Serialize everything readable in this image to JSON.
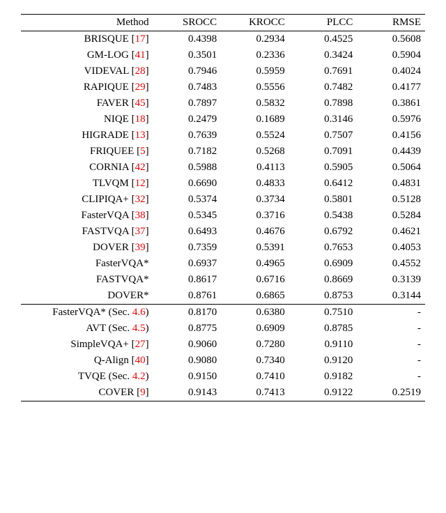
{
  "table": {
    "columns": [
      "Method",
      "SROCC",
      "KROCC",
      "PLCC",
      "RMSE"
    ],
    "rows_top": [
      {
        "method": "BRISQUE",
        "cite": "17",
        "srocc": "0.4398",
        "krocc": "0.2934",
        "plcc": "0.4525",
        "rmse": "0.5608"
      },
      {
        "method": "GM-LOG",
        "cite": "41",
        "srocc": "0.3501",
        "krocc": "0.2336",
        "plcc": "0.3424",
        "rmse": "0.5904"
      },
      {
        "method": "VIDEVAL",
        "cite": "28",
        "srocc": "0.7946",
        "krocc": "0.5959",
        "plcc": "0.7691",
        "rmse": "0.4024"
      },
      {
        "method": "RAPIQUE",
        "cite": "29",
        "srocc": "0.7483",
        "krocc": "0.5556",
        "plcc": "0.7482",
        "rmse": "0.4177"
      },
      {
        "method": "FAVER",
        "cite": "45",
        "srocc": "0.7897",
        "krocc": "0.5832",
        "plcc": "0.7898",
        "rmse": "0.3861"
      },
      {
        "method": "NIQE",
        "cite": "18",
        "srocc": "0.2479",
        "krocc": "0.1689",
        "plcc": "0.3146",
        "rmse": "0.5976"
      },
      {
        "method": "HIGRADE",
        "cite": "13",
        "srocc": "0.7639",
        "krocc": "0.5524",
        "plcc": "0.7507",
        "rmse": "0.4156"
      },
      {
        "method": "FRIQUEE",
        "cite": "5",
        "srocc": "0.7182",
        "krocc": "0.5268",
        "plcc": "0.7091",
        "rmse": "0.4439"
      },
      {
        "method": "CORNIA",
        "cite": "42",
        "srocc": "0.5988",
        "krocc": "0.4113",
        "plcc": "0.5905",
        "rmse": "0.5064"
      },
      {
        "method": "TLVQM",
        "cite": "12",
        "srocc": "0.6690",
        "krocc": "0.4833",
        "plcc": "0.6412",
        "rmse": "0.4831"
      },
      {
        "method": "CLIPIQA+",
        "cite": "32",
        "srocc": "0.5374",
        "krocc": "0.3734",
        "plcc": "0.5801",
        "rmse": "0.5128"
      },
      {
        "method": "FasterVQA",
        "cite": "38",
        "srocc": "0.5345",
        "krocc": "0.3716",
        "plcc": "0.5438",
        "rmse": "0.5284"
      },
      {
        "method": "FASTVQA",
        "cite": "37",
        "srocc": "0.6493",
        "krocc": "0.4676",
        "plcc": "0.6792",
        "rmse": "0.4621"
      },
      {
        "method": "DOVER",
        "cite": "39",
        "srocc": "0.7359",
        "krocc": "0.5391",
        "plcc": "0.7653",
        "rmse": "0.4053"
      },
      {
        "method": "FasterVQA*",
        "cite": "",
        "srocc": "0.6937",
        "krocc": "0.4965",
        "plcc": "0.6909",
        "rmse": "0.4552"
      },
      {
        "method": "FASTVQA*",
        "cite": "",
        "srocc": "0.8617",
        "krocc": "0.6716",
        "plcc": "0.8669",
        "rmse": "0.3139"
      },
      {
        "method": "DOVER*",
        "cite": "",
        "srocc": "0.8761",
        "krocc": "0.6865",
        "plcc": "0.8753",
        "rmse": "0.3144"
      }
    ],
    "rows_bottom": [
      {
        "method": "FasterVQA* (Sec. ",
        "sec": "4.6",
        "close": ")",
        "cite": "",
        "srocc": "0.8170",
        "krocc": "0.6380",
        "plcc": "0.7510",
        "rmse": "-"
      },
      {
        "method": "AVT (Sec. ",
        "sec": "4.5",
        "close": ")",
        "cite": "",
        "srocc": "0.8775",
        "krocc": "0.6909",
        "plcc": "0.8785",
        "rmse": "-"
      },
      {
        "method": "SimpleVQA+",
        "sec": "",
        "close": "",
        "cite": "27",
        "srocc": "0.9060",
        "krocc": "0.7280",
        "plcc": "0.9110",
        "rmse": "-"
      },
      {
        "method": "Q-Align",
        "sec": "",
        "close": "",
        "cite": "40",
        "srocc": "0.9080",
        "krocc": "0.7340",
        "plcc": "0.9120",
        "rmse": "-"
      },
      {
        "method": "TVQE (Sec. ",
        "sec": "4.2",
        "close": ")",
        "cite": "",
        "srocc": "0.9150",
        "krocc": "0.7410",
        "plcc": "0.9182",
        "rmse": "-"
      },
      {
        "method": "COVER",
        "sec": "",
        "close": "",
        "cite": "9",
        "srocc": "0.9143",
        "krocc": "0.7413",
        "plcc": "0.9122",
        "rmse": "0.2519"
      }
    ]
  }
}
